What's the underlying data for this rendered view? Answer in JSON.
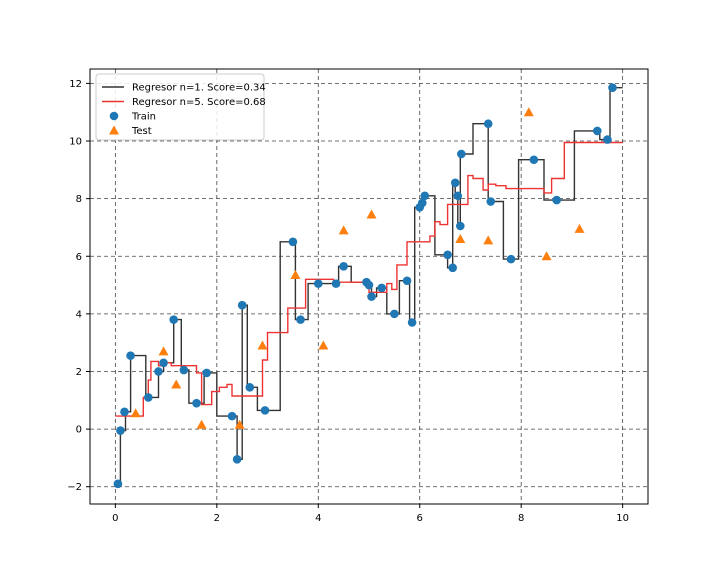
{
  "chart_data": {
    "type": "scatter",
    "title": "",
    "xlabel": "",
    "ylabel": "",
    "xlim": [
      -0.5,
      10.5
    ],
    "ylim": [
      -2.6,
      12.5
    ],
    "xticks": [
      "0",
      "2",
      "4",
      "6",
      "8",
      "10"
    ],
    "yticks": [
      "−2",
      "0",
      "2",
      "4",
      "6",
      "8",
      "10",
      "12"
    ],
    "grid": true,
    "legend_position": "top-left",
    "series": [
      {
        "name": "Regresor n=1. Score=0.34",
        "kind": "step",
        "color": "#333333",
        "points": [
          [
            0.05,
            -1.9
          ],
          [
            0.1,
            -0.05
          ],
          [
            0.2,
            0.6
          ],
          [
            0.3,
            2.55
          ],
          [
            0.45,
            2.55
          ],
          [
            0.6,
            1.1
          ],
          [
            0.75,
            1.1
          ],
          [
            0.85,
            2.0
          ],
          [
            0.95,
            2.3
          ],
          [
            1.15,
            3.8
          ],
          [
            1.3,
            2.05
          ],
          [
            1.45,
            0.9
          ],
          [
            1.6,
            0.9
          ],
          [
            1.75,
            1.95
          ],
          [
            2.0,
            0.45
          ],
          [
            2.3,
            0.45
          ],
          [
            2.4,
            -1.05
          ],
          [
            2.5,
            4.3
          ],
          [
            2.6,
            1.45
          ],
          [
            2.8,
            0.65
          ],
          [
            3.2,
            0.65
          ],
          [
            3.25,
            6.5
          ],
          [
            3.55,
            3.8
          ],
          [
            3.8,
            5.05
          ],
          [
            4.05,
            5.05
          ],
          [
            4.4,
            5.65
          ],
          [
            4.65,
            5.1
          ],
          [
            4.95,
            5.0
          ],
          [
            5.05,
            4.6
          ],
          [
            5.15,
            4.9
          ],
          [
            5.35,
            4.0
          ],
          [
            5.6,
            5.15
          ],
          [
            5.8,
            3.7
          ],
          [
            5.9,
            7.7
          ],
          [
            6.0,
            7.9
          ],
          [
            6.1,
            8.1
          ],
          [
            6.3,
            6.05
          ],
          [
            6.55,
            5.6
          ],
          [
            6.65,
            8.55
          ],
          [
            6.7,
            8.1
          ],
          [
            6.75,
            7.05
          ],
          [
            6.8,
            9.55
          ],
          [
            7.05,
            10.6
          ],
          [
            7.35,
            7.9
          ],
          [
            7.65,
            5.9
          ],
          [
            7.95,
            9.35
          ],
          [
            8.45,
            7.95
          ],
          [
            9.05,
            10.35
          ],
          [
            9.55,
            10.05
          ],
          [
            9.75,
            11.85
          ],
          [
            10.0,
            11.85
          ]
        ]
      },
      {
        "name": "Regresor n=5. Score=0.68",
        "kind": "step",
        "color": "#ee3333",
        "points": [
          [
            0.0,
            0.45
          ],
          [
            0.5,
            0.45
          ],
          [
            0.55,
            1.1
          ],
          [
            0.65,
            1.7
          ],
          [
            0.7,
            2.35
          ],
          [
            0.85,
            2.2
          ],
          [
            1.0,
            2.3
          ],
          [
            1.1,
            2.2
          ],
          [
            1.3,
            2.2
          ],
          [
            1.6,
            1.95
          ],
          [
            1.7,
            0.85
          ],
          [
            1.85,
            0.85
          ],
          [
            1.9,
            1.3
          ],
          [
            2.05,
            1.45
          ],
          [
            2.2,
            1.55
          ],
          [
            2.3,
            1.15
          ],
          [
            2.85,
            1.15
          ],
          [
            2.9,
            2.4
          ],
          [
            3.0,
            3.35
          ],
          [
            3.25,
            3.35
          ],
          [
            3.4,
            4.2
          ],
          [
            3.55,
            4.2
          ],
          [
            3.75,
            5.2
          ],
          [
            4.15,
            5.2
          ],
          [
            4.3,
            5.1
          ],
          [
            4.6,
            5.1
          ],
          [
            4.75,
            5.1
          ],
          [
            5.0,
            4.75
          ],
          [
            5.3,
            4.75
          ],
          [
            5.35,
            5.05
          ],
          [
            5.45,
            4.85
          ],
          [
            5.55,
            5.7
          ],
          [
            5.75,
            6.5
          ],
          [
            6.05,
            6.5
          ],
          [
            6.2,
            6.7
          ],
          [
            6.3,
            7.2
          ],
          [
            6.4,
            7.1
          ],
          [
            6.55,
            7.8
          ],
          [
            6.95,
            8.8
          ],
          [
            7.05,
            8.7
          ],
          [
            7.25,
            8.3
          ],
          [
            7.35,
            8.5
          ],
          [
            7.5,
            8.45
          ],
          [
            7.7,
            8.35
          ],
          [
            8.45,
            8.2
          ],
          [
            8.6,
            8.7
          ],
          [
            8.85,
            9.95
          ],
          [
            10.0,
            9.95
          ]
        ]
      },
      {
        "name": "Train",
        "kind": "points",
        "marker": "circle",
        "color": "#1f77b4",
        "points": [
          [
            0.05,
            -1.9
          ],
          [
            0.1,
            -0.05
          ],
          [
            0.18,
            0.6
          ],
          [
            0.3,
            2.55
          ],
          [
            0.65,
            1.1
          ],
          [
            0.85,
            2.0
          ],
          [
            0.95,
            2.3
          ],
          [
            1.15,
            3.8
          ],
          [
            1.35,
            2.05
          ],
          [
            1.6,
            0.9
          ],
          [
            1.8,
            1.95
          ],
          [
            2.3,
            0.45
          ],
          [
            2.4,
            -1.05
          ],
          [
            2.5,
            4.3
          ],
          [
            2.65,
            1.45
          ],
          [
            2.95,
            0.65
          ],
          [
            3.5,
            6.5
          ],
          [
            3.65,
            3.8
          ],
          [
            4.0,
            5.05
          ],
          [
            4.35,
            5.05
          ],
          [
            4.5,
            5.65
          ],
          [
            4.95,
            5.1
          ],
          [
            5.0,
            5.0
          ],
          [
            5.05,
            4.6
          ],
          [
            5.25,
            4.9
          ],
          [
            5.5,
            4.0
          ],
          [
            5.75,
            5.15
          ],
          [
            5.85,
            3.7
          ],
          [
            6.0,
            7.7
          ],
          [
            6.05,
            7.85
          ],
          [
            6.1,
            8.1
          ],
          [
            6.55,
            6.05
          ],
          [
            6.65,
            5.6
          ],
          [
            6.7,
            8.55
          ],
          [
            6.75,
            8.1
          ],
          [
            6.8,
            7.05
          ],
          [
            6.82,
            9.55
          ],
          [
            7.35,
            10.6
          ],
          [
            7.4,
            7.9
          ],
          [
            7.8,
            5.9
          ],
          [
            8.25,
            9.35
          ],
          [
            8.7,
            7.95
          ],
          [
            9.5,
            10.35
          ],
          [
            9.7,
            10.05
          ],
          [
            9.8,
            11.85
          ]
        ]
      },
      {
        "name": "Test",
        "kind": "points",
        "marker": "triangle",
        "color": "#ff7f0e",
        "points": [
          [
            0.4,
            0.55
          ],
          [
            0.95,
            2.7
          ],
          [
            1.2,
            1.55
          ],
          [
            1.7,
            0.15
          ],
          [
            2.45,
            0.15
          ],
          [
            2.9,
            2.9
          ],
          [
            3.55,
            5.35
          ],
          [
            4.1,
            2.9
          ],
          [
            4.5,
            6.9
          ],
          [
            5.05,
            7.45
          ],
          [
            6.8,
            6.6
          ],
          [
            7.35,
            6.55
          ],
          [
            8.15,
            11.0
          ],
          [
            8.5,
            6.0
          ],
          [
            9.15,
            6.95
          ]
        ]
      }
    ]
  }
}
